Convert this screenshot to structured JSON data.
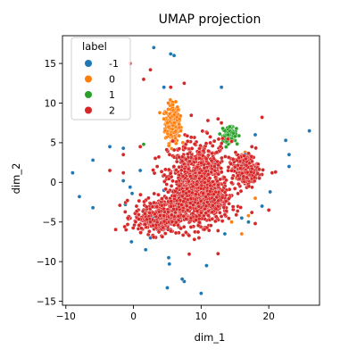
{
  "chart_data": {
    "type": "scatter",
    "title": "UMAP projection",
    "xlabel": "dim_1",
    "ylabel": "dim_2",
    "xlim": [
      -10.5,
      27.5
    ],
    "ylim": [
      -15.5,
      18.5
    ],
    "x_ticks": [
      -10,
      0,
      10,
      20
    ],
    "y_ticks": [
      -15,
      -10,
      -5,
      0,
      5,
      10,
      15
    ],
    "x_tick_labels": [
      "−10",
      "0",
      "10",
      "20"
    ],
    "y_tick_labels": [
      "−15",
      "−10",
      "−5",
      "0",
      "5",
      "10",
      "15"
    ],
    "grid": false,
    "legend": {
      "title": "label",
      "placement": "top-left",
      "entries": [
        {
          "label": "-1",
          "color": "#1f77b4"
        },
        {
          "label": "0",
          "color": "#ff7f0e"
        },
        {
          "label": "1",
          "color": "#2ca02c"
        },
        {
          "label": "2",
          "color": "#d62728"
        }
      ]
    },
    "series": [
      {
        "name": "-1",
        "color": "#1f77b4",
        "points": [
          [
            3.0,
            17.0
          ],
          [
            5.5,
            16.2
          ],
          [
            6.0,
            16.0
          ],
          [
            4.5,
            12.0
          ],
          [
            13.0,
            12.0
          ],
          [
            -3.5,
            4.5
          ],
          [
            -1.5,
            4.3
          ],
          [
            -6.0,
            2.8
          ],
          [
            -9.0,
            1.2
          ],
          [
            1.0,
            1.5
          ],
          [
            -1.5,
            0.2
          ],
          [
            -0.5,
            -0.6
          ],
          [
            -8.0,
            -1.8
          ],
          [
            -6.0,
            -3.2
          ],
          [
            -1.2,
            -2.8
          ],
          [
            -0.2,
            -1.4
          ],
          [
            18.0,
            6.0
          ],
          [
            26.0,
            6.5
          ],
          [
            22.5,
            5.3
          ],
          [
            23.0,
            3.5
          ],
          [
            23.0,
            2.0
          ],
          [
            16.5,
            3.5
          ],
          [
            15.2,
            1.5
          ],
          [
            12.0,
            2.5
          ],
          [
            4.5,
            -1.0
          ],
          [
            -0.3,
            -7.5
          ],
          [
            1.8,
            -8.5
          ],
          [
            2.5,
            -7.0
          ],
          [
            5.2,
            -9.5
          ],
          [
            5.3,
            -10.3
          ],
          [
            5.0,
            -13.3
          ],
          [
            7.5,
            -12.5
          ],
          [
            10.0,
            -14.0
          ],
          [
            10.8,
            -10.5
          ],
          [
            13.5,
            -6.5
          ],
          [
            16.0,
            -4.5
          ],
          [
            17.0,
            -5.0
          ],
          [
            19.0,
            -3.0
          ],
          [
            20.2,
            -1.2
          ],
          [
            4.8,
            -5.8
          ],
          [
            12.5,
            -2.3
          ],
          [
            6.8,
            -5.6
          ],
          [
            7.2,
            -12.2
          ],
          [
            3.0,
            -4.3
          ],
          [
            8.5,
            1.2
          ]
        ]
      },
      {
        "name": "0",
        "color": "#ff7f0e",
        "points": [
          [
            5.0,
            7.5
          ],
          [
            6.0,
            8.5
          ],
          [
            5.5,
            6.0
          ],
          [
            7.0,
            6.5
          ],
          [
            6.5,
            9.5
          ],
          [
            5.8,
            9.8
          ],
          [
            4.5,
            8.0
          ],
          [
            6.0,
            5.2
          ],
          [
            5.2,
            7.0
          ],
          [
            6.8,
            8.0
          ],
          [
            16.0,
            3.5
          ],
          [
            16.5,
            3.8
          ],
          [
            15.2,
            0.5
          ],
          [
            18.0,
            -2.0
          ],
          [
            17.0,
            -4.2
          ],
          [
            16.0,
            -6.5
          ],
          [
            14.5,
            -5.0
          ]
        ]
      },
      {
        "name": "1",
        "color": "#2ca02c",
        "points": [
          [
            13.5,
            6.5
          ],
          [
            14.0,
            6.0
          ],
          [
            14.5,
            5.5
          ],
          [
            14.8,
            6.2
          ],
          [
            13.8,
            5.2
          ],
          [
            14.2,
            7.0
          ],
          [
            15.0,
            5.8
          ],
          [
            13.2,
            6.8
          ],
          [
            1.5,
            4.8
          ]
        ]
      },
      {
        "name": "2",
        "color": "#d62728",
        "points": [
          [
            -0.5,
            15.0
          ],
          [
            2.5,
            14.2
          ],
          [
            1.5,
            13.0
          ],
          [
            5.5,
            12.0
          ],
          [
            7.5,
            12.5
          ],
          [
            1.0,
            4.5
          ],
          [
            -1.5,
            3.5
          ],
          [
            -3.5,
            1.5
          ],
          [
            -1.5,
            1.2
          ],
          [
            3.5,
            2.0
          ],
          [
            11.0,
            7.8
          ],
          [
            12.5,
            8.0
          ],
          [
            13.0,
            7.5
          ],
          [
            17.5,
            4.5
          ],
          [
            19.0,
            8.2
          ],
          [
            20.5,
            1.2
          ],
          [
            21.0,
            1.3
          ],
          [
            20.0,
            -3.5
          ],
          [
            8.5,
            -4.5
          ],
          [
            9.0,
            -7.2
          ],
          [
            12.5,
            -9.0
          ],
          [
            18.0,
            -5.2
          ],
          [
            17.5,
            -3.8
          ],
          [
            2.5,
            -5.0
          ],
          [
            4.5,
            -4.2
          ],
          [
            13.0,
            -4.3
          ]
        ],
        "clusters": [
          {
            "x": 9.5,
            "y": 0.6,
            "sx": 2.2,
            "sy": 2.4,
            "n": 650
          },
          {
            "x": 10.5,
            "y": -2.6,
            "sx": 1.8,
            "sy": 1.4,
            "n": 350
          },
          {
            "x": 4.0,
            "y": -4.3,
            "sx": 2.0,
            "sy": 1.1,
            "n": 380
          },
          {
            "x": 7.2,
            "y": -1.8,
            "sx": 0.9,
            "sy": 1.5,
            "n": 160
          },
          {
            "x": 16.5,
            "y": 1.6,
            "sx": 1.0,
            "sy": 1.0,
            "n": 240
          }
        ]
      }
    ]
  }
}
